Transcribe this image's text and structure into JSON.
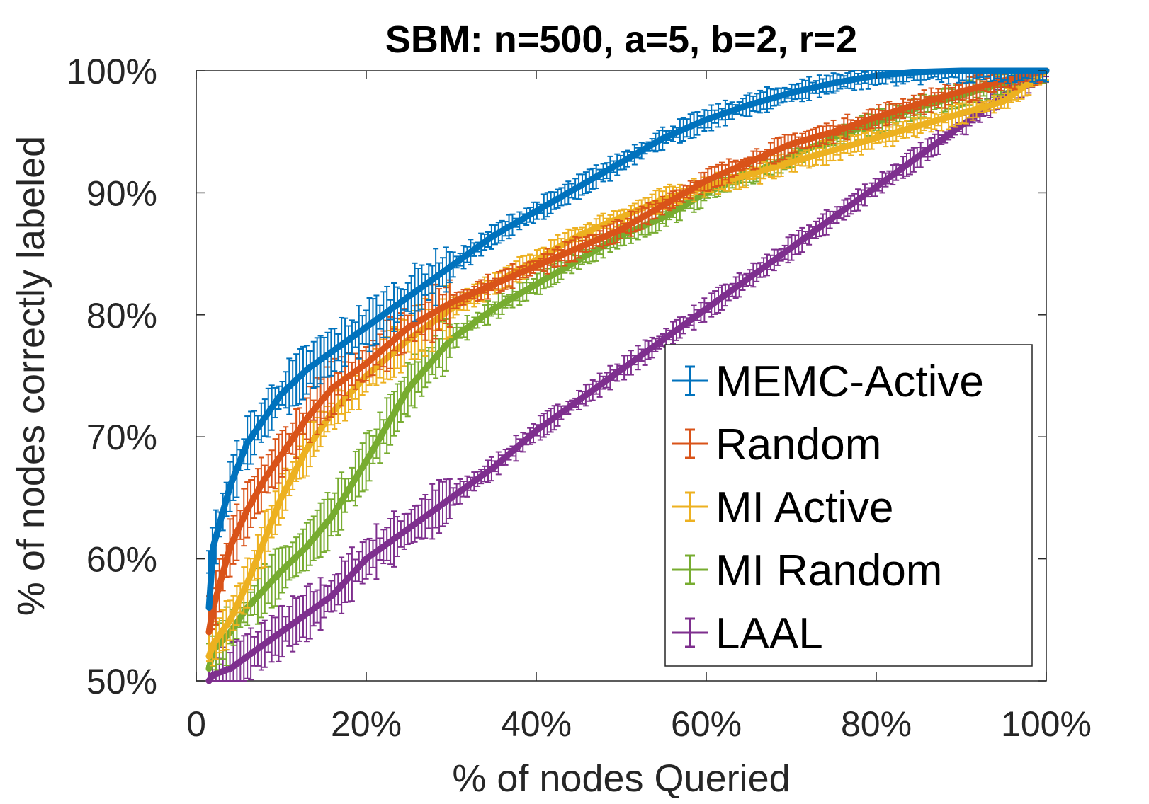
{
  "chart_data": {
    "type": "line",
    "title": "SBM: n=500, a=5, b=2, r=2",
    "xlabel": "% of nodes Queried",
    "ylabel": "% of nodes correctly labeled",
    "xlim": [
      0,
      100
    ],
    "ylim": [
      50,
      100
    ],
    "x_ticks": [
      0,
      20,
      40,
      60,
      80,
      100
    ],
    "x_tick_labels": [
      "0",
      "20%",
      "40%",
      "60%",
      "80%",
      "100%"
    ],
    "y_ticks": [
      50,
      60,
      70,
      80,
      90,
      100
    ],
    "y_tick_labels": [
      "50%",
      "60%",
      "70%",
      "80%",
      "90%",
      "100%"
    ],
    "error_bars": true,
    "legend_position": "bottom-right",
    "grid": false,
    "series": [
      {
        "name": "MEMC-Active",
        "color": "#0072BD",
        "x": [
          0,
          2,
          4,
          6,
          8,
          10,
          13,
          16,
          20,
          25,
          30,
          35,
          40,
          45,
          50,
          55,
          60,
          65,
          70,
          75,
          80,
          85,
          90,
          95,
          100
        ],
        "y": [
          56,
          61,
          66,
          69.5,
          71.5,
          73.5,
          75.5,
          77,
          79,
          81.5,
          84,
          86.5,
          88.5,
          90.5,
          92.5,
          94.5,
          96,
          97.2,
          98.2,
          99,
          99.6,
          99.9,
          100,
          100,
          100
        ]
      },
      {
        "name": "Random",
        "color": "#D95319",
        "x": [
          0,
          2,
          4,
          6,
          8,
          10,
          13,
          16,
          20,
          25,
          30,
          35,
          40,
          45,
          50,
          55,
          60,
          65,
          70,
          75,
          80,
          85,
          90,
          95,
          100
        ],
        "y": [
          54,
          56,
          61,
          64,
          66.5,
          68.5,
          71.5,
          74,
          76,
          79,
          81,
          82.5,
          84,
          85.5,
          87,
          89,
          91,
          92.5,
          94,
          95,
          96.2,
          97.3,
          98.3,
          99.2,
          100
        ]
      },
      {
        "name": "MI Active",
        "color": "#EDB120",
        "x": [
          0,
          2,
          4,
          6,
          8,
          10,
          13,
          16,
          20,
          25,
          30,
          35,
          40,
          45,
          50,
          55,
          60,
          65,
          70,
          75,
          80,
          85,
          90,
          95,
          100
        ],
        "y": [
          52,
          53,
          55,
          58,
          61.5,
          65,
          69,
          72,
          75,
          78,
          80.5,
          82.5,
          84.5,
          86.5,
          88,
          89.5,
          90.5,
          91.5,
          92.5,
          93.5,
          94.5,
          95.5,
          96.5,
          97.5,
          100
        ]
      },
      {
        "name": "MI Random",
        "color": "#77AC30",
        "x": [
          0,
          2,
          4,
          6,
          8,
          10,
          13,
          16,
          20,
          25,
          30,
          35,
          40,
          45,
          50,
          55,
          60,
          65,
          70,
          75,
          80,
          85,
          90,
          95,
          100
        ],
        "y": [
          51,
          52.5,
          54,
          56,
          57.5,
          59,
          61,
          63.5,
          68,
          74,
          78,
          80.5,
          82.5,
          84.5,
          86.5,
          88,
          90,
          91.5,
          93,
          94.5,
          95.8,
          97,
          98,
          99,
          100
        ]
      },
      {
        "name": "LAAL",
        "color": "#7E2F8E",
        "x": [
          0,
          2,
          4,
          6,
          8,
          10,
          13,
          16,
          20,
          25,
          30,
          35,
          40,
          45,
          50,
          55,
          60,
          65,
          70,
          75,
          80,
          85,
          90,
          95,
          100
        ],
        "y": [
          50,
          50.5,
          51,
          52,
          53,
          54,
          55.5,
          57,
          60,
          62.5,
          65,
          67.5,
          70.5,
          73,
          75.5,
          78,
          80.5,
          83,
          85.5,
          88,
          90.5,
          93,
          95.5,
          98,
          100
        ]
      }
    ]
  }
}
